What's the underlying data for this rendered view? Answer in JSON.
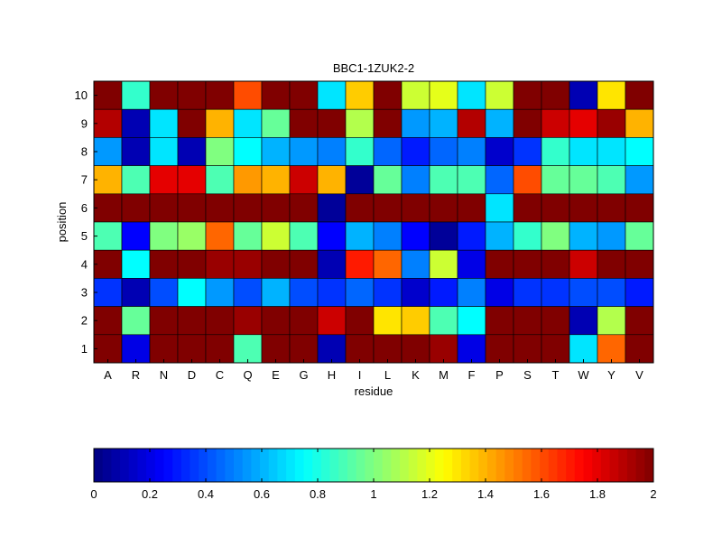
{
  "chart_data": {
    "type": "heatmap",
    "title": "BBC1-1ZUK2-2",
    "xlabel": "residue",
    "ylabel": "position",
    "x_categories": [
      "A",
      "R",
      "N",
      "D",
      "C",
      "Q",
      "E",
      "G",
      "H",
      "I",
      "L",
      "K",
      "M",
      "F",
      "P",
      "S",
      "T",
      "W",
      "Y",
      "V"
    ],
    "y_categories": [
      "10",
      "9",
      "8",
      "7",
      "6",
      "5",
      "4",
      "3",
      "2",
      "1"
    ],
    "values": [
      [
        2.0,
        0.85,
        2.0,
        2.0,
        2.0,
        1.6,
        2.0,
        2.0,
        0.7,
        1.35,
        2.0,
        1.15,
        1.2,
        0.7,
        1.15,
        2.0,
        2.0,
        0.1,
        1.3,
        2.0
      ],
      [
        1.9,
        0.1,
        0.7,
        2.0,
        1.4,
        0.7,
        0.95,
        2.0,
        2.0,
        1.1,
        2.0,
        0.55,
        0.6,
        1.9,
        0.6,
        2.0,
        1.85,
        1.8,
        1.95,
        1.4
      ],
      [
        0.55,
        0.1,
        0.7,
        0.1,
        1.0,
        0.75,
        0.6,
        0.55,
        0.5,
        0.85,
        0.45,
        0.3,
        0.45,
        0.5,
        0.15,
        0.35,
        0.85,
        0.7,
        0.7,
        0.75
      ],
      [
        1.4,
        0.9,
        1.8,
        1.8,
        0.9,
        1.45,
        1.4,
        1.85,
        1.4,
        0.05,
        0.95,
        0.5,
        0.9,
        0.9,
        0.45,
        1.6,
        0.95,
        0.95,
        0.9,
        0.55
      ],
      [
        2.0,
        2.0,
        2.0,
        2.0,
        2.0,
        2.0,
        2.0,
        2.0,
        0.05,
        2.0,
        2.0,
        2.0,
        2.0,
        2.0,
        0.7,
        2.0,
        2.0,
        2.0,
        2.0,
        2.0
      ],
      [
        0.9,
        0.25,
        1.0,
        1.05,
        1.55,
        0.95,
        1.15,
        0.9,
        0.25,
        0.6,
        0.5,
        0.25,
        0.05,
        0.3,
        0.6,
        0.85,
        1.0,
        0.6,
        0.55,
        0.95
      ],
      [
        2.0,
        0.75,
        2.0,
        2.0,
        1.95,
        1.95,
        2.0,
        2.0,
        0.1,
        1.7,
        1.55,
        0.5,
        1.15,
        0.2,
        2.0,
        2.0,
        2.0,
        1.85,
        2.0,
        2.0
      ],
      [
        0.35,
        0.1,
        0.4,
        0.75,
        0.55,
        0.4,
        0.6,
        0.4,
        0.35,
        0.45,
        0.35,
        0.15,
        0.3,
        0.5,
        0.2,
        0.35,
        0.35,
        0.4,
        0.4,
        0.3
      ],
      [
        2.0,
        0.95,
        2.0,
        2.0,
        2.0,
        1.95,
        2.0,
        2.0,
        1.85,
        2.0,
        1.3,
        1.35,
        0.9,
        0.75,
        2.0,
        2.0,
        2.0,
        0.1,
        1.1,
        2.0
      ],
      [
        2.0,
        0.2,
        2.0,
        2.0,
        2.0,
        0.9,
        2.0,
        2.0,
        0.1,
        2.0,
        2.0,
        2.0,
        1.95,
        0.2,
        2.0,
        2.0,
        2.0,
        0.7,
        1.55,
        2.0
      ]
    ],
    "colormap": "jet",
    "clim": [
      0,
      2
    ],
    "colorbar": {
      "orientation": "horizontal",
      "ticks": [
        0,
        0.2,
        0.4,
        0.6,
        0.8,
        1,
        1.2,
        1.4,
        1.6,
        1.8,
        2
      ],
      "tick_labels": [
        "0",
        "0.2",
        "0.4",
        "0.6",
        "0.8",
        "1",
        "1.2",
        "1.4",
        "1.6",
        "1.8",
        "2"
      ]
    },
    "grid": false
  }
}
